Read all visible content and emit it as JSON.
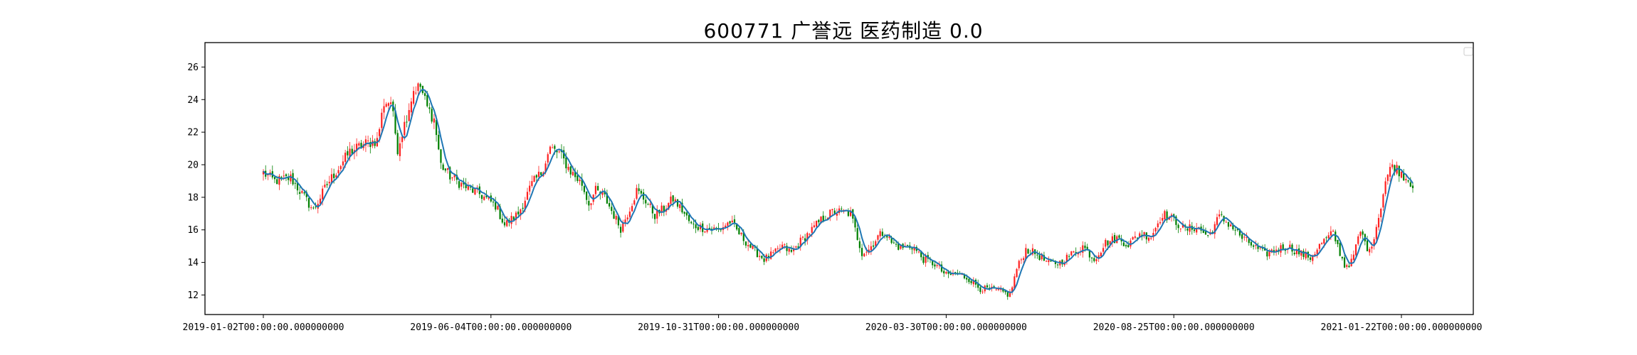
{
  "chart_data": {
    "type": "candlestick",
    "title": "600771 广誉远 医药制造 0.0",
    "xlabel": "",
    "ylabel": "",
    "ylim": [
      10.8,
      27.5
    ],
    "yticks": [
      12,
      14,
      16,
      18,
      20,
      22,
      24,
      26
    ],
    "x_tick_labels": [
      "2019-01-02T00:00:00.000000000",
      "2019-06-04T00:00:00.000000000",
      "2019-10-31T00:00:00.000000000",
      "2020-03-30T00:00:00.000000000",
      "2020-08-25T00:00:00.000000000",
      "2021-01-22T00:00:00.000000000"
    ],
    "x_tick_positions": [
      0,
      100,
      200,
      300,
      400,
      500
    ],
    "x_end_index": 505,
    "up_color": "#ff2020",
    "down_color": "#008000",
    "ma_color": "#1f77b4",
    "grid": false,
    "legend": "top-right",
    "close_anchors": [
      [
        0,
        19.5
      ],
      [
        5,
        19.0
      ],
      [
        12,
        19.2
      ],
      [
        18,
        18.0
      ],
      [
        22,
        17.2
      ],
      [
        28,
        18.8
      ],
      [
        33,
        19.8
      ],
      [
        38,
        20.8
      ],
      [
        45,
        21.3
      ],
      [
        50,
        21.5
      ],
      [
        53,
        23.8
      ],
      [
        56,
        23.9
      ],
      [
        59,
        21.0
      ],
      [
        63,
        23.0
      ],
      [
        66,
        24.6
      ],
      [
        69,
        24.8
      ],
      [
        72,
        23.5
      ],
      [
        75,
        22.8
      ],
      [
        78,
        20.0
      ],
      [
        82,
        19.3
      ],
      [
        88,
        18.7
      ],
      [
        95,
        18.2
      ],
      [
        102,
        17.5
      ],
      [
        106,
        16.3
      ],
      [
        112,
        17.0
      ],
      [
        118,
        18.8
      ],
      [
        122,
        19.5
      ],
      [
        126,
        21.0
      ],
      [
        130,
        20.7
      ],
      [
        135,
        19.6
      ],
      [
        140,
        18.8
      ],
      [
        143,
        17.6
      ],
      [
        146,
        18.4
      ],
      [
        150,
        18.0
      ],
      [
        154,
        16.9
      ],
      [
        157,
        16.1
      ],
      [
        160,
        17.0
      ],
      [
        164,
        18.4
      ],
      [
        168,
        17.8
      ],
      [
        172,
        16.9
      ],
      [
        176,
        17.3
      ],
      [
        180,
        17.9
      ],
      [
        184,
        17.2
      ],
      [
        188,
        16.3
      ],
      [
        194,
        16.1
      ],
      [
        200,
        16.0
      ],
      [
        205,
        16.5
      ],
      [
        210,
        15.6
      ],
      [
        215,
        14.8
      ],
      [
        220,
        14.2
      ],
      [
        225,
        14.6
      ],
      [
        228,
        15.0
      ],
      [
        232,
        14.6
      ],
      [
        236,
        15.3
      ],
      [
        241,
        16.0
      ],
      [
        245,
        16.6
      ],
      [
        250,
        17.1
      ],
      [
        255,
        17.1
      ],
      [
        258,
        17.0
      ],
      [
        260,
        16.0
      ],
      [
        263,
        14.6
      ],
      [
        266,
        14.8
      ],
      [
        270,
        15.6
      ],
      [
        273,
        15.9
      ],
      [
        276,
        15.2
      ],
      [
        280,
        14.9
      ],
      [
        285,
        15.0
      ],
      [
        290,
        14.2
      ],
      [
        295,
        13.9
      ],
      [
        300,
        13.2
      ],
      [
        305,
        13.3
      ],
      [
        310,
        13.0
      ],
      [
        315,
        12.4
      ],
      [
        320,
        12.3
      ],
      [
        324,
        12.2
      ],
      [
        328,
        12.0
      ],
      [
        331,
        13.6
      ],
      [
        335,
        14.8
      ],
      [
        340,
        14.5
      ],
      [
        345,
        13.9
      ],
      [
        350,
        14.0
      ],
      [
        355,
        14.5
      ],
      [
        360,
        15.0
      ],
      [
        365,
        14.2
      ],
      [
        370,
        15.2
      ],
      [
        375,
        15.5
      ],
      [
        380,
        15.1
      ],
      [
        385,
        15.8
      ],
      [
        390,
        15.6
      ],
      [
        395,
        17.0
      ],
      [
        400,
        16.6
      ],
      [
        405,
        16.0
      ],
      [
        410,
        16.2
      ],
      [
        415,
        15.6
      ],
      [
        420,
        16.8
      ],
      [
        425,
        16.3
      ],
      [
        430,
        15.5
      ],
      [
        435,
        15.0
      ],
      [
        440,
        14.5
      ],
      [
        445,
        14.8
      ],
      [
        450,
        15.0
      ],
      [
        455,
        14.6
      ],
      [
        460,
        14.3
      ],
      [
        465,
        15.2
      ],
      [
        470,
        15.8
      ],
      [
        475,
        13.8
      ],
      [
        478,
        14.0
      ],
      [
        482,
        15.9
      ],
      [
        486,
        14.6
      ],
      [
        490,
        16.8
      ],
      [
        493,
        19.0
      ],
      [
        496,
        20.0
      ],
      [
        500,
        19.5
      ],
      [
        505,
        18.8
      ]
    ]
  }
}
